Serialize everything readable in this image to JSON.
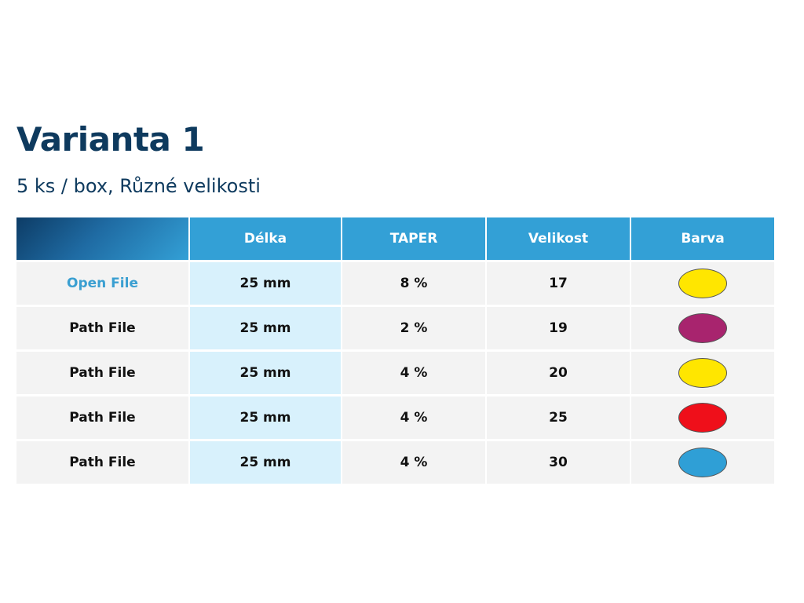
{
  "title": "Varianta 1",
  "subtitle": "5 ks / box, Různé velikosti",
  "table": {
    "headers": [
      "",
      "Délka",
      "TAPER",
      "Velikost",
      "Barva"
    ],
    "rows": [
      {
        "name": "Open File",
        "length": "25 mm",
        "taper": "8 %",
        "size": "17",
        "color": "#ffe600",
        "color_name": "yellow"
      },
      {
        "name": "Path File",
        "length": "25 mm",
        "taper": "2 %",
        "size": "19",
        "color": "#a8246e",
        "color_name": "purple"
      },
      {
        "name": "Path File",
        "length": "25 mm",
        "taper": "4 %",
        "size": "20",
        "color": "#ffe600",
        "color_name": "yellow"
      },
      {
        "name": "Path File",
        "length": "25 mm",
        "taper": "4 %",
        "size": "25",
        "color": "#ef0f1a",
        "color_name": "red"
      },
      {
        "name": "Path File",
        "length": "25 mm",
        "taper": "4 %",
        "size": "30",
        "color": "#2f9fd6",
        "color_name": "blue"
      }
    ]
  },
  "colors": {
    "title": "#0e3a5e",
    "header": "#33a0d6",
    "length_column": "#d8f1fc",
    "row_background": "#f3f3f3",
    "link": "#3a9fd1"
  }
}
